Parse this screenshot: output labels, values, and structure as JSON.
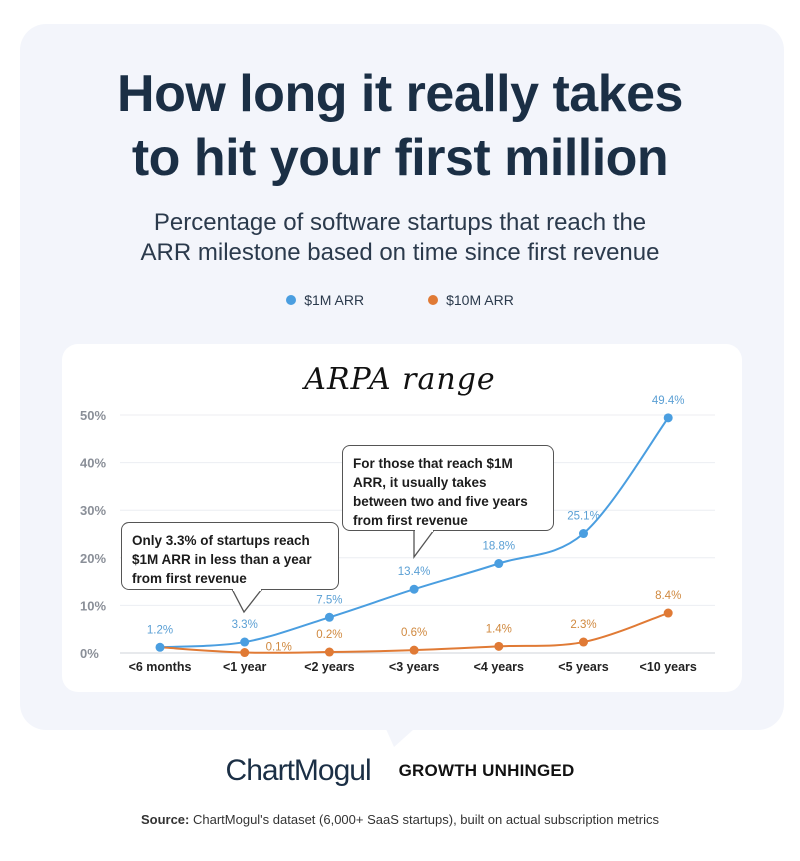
{
  "header": {
    "title_line1": "How long it really takes",
    "title_line2": "to hit your first million",
    "subtitle_line1": "Percentage of software startups that reach the",
    "subtitle_line2": "ARR milestone based on time since first revenue"
  },
  "legend": [
    {
      "label": "$1M ARR",
      "color": "#4a9ee0"
    },
    {
      "label": "$10M ARR",
      "color": "#e07a35"
    }
  ],
  "chart_heading": "ARPA range",
  "callouts": [
    {
      "text": "Only 3.3% of startups reach $1M ARR in less than a year from first revenue"
    },
    {
      "text": "For those that reach $1M ARR, it usually takes between two and five years from first revenue"
    }
  ],
  "footer": {
    "brand1": "ChartMogul",
    "brand2": "GROWTH UNHINGED",
    "source_label": "Source:",
    "source_text": " ChartMogul's dataset (6,000+ SaaS startups), built on actual subscription metrics"
  },
  "chart_data": {
    "type": "line",
    "title": "How long it really takes to hit your first million",
    "subtitle": "Percentage of software startups that reach the ARR milestone based on time since first revenue",
    "xlabel": "",
    "ylabel": "",
    "categories": [
      "<6 months",
      "<1 year",
      "<2 years",
      "<3 years",
      "<4 years",
      "<5 years",
      "<10 years"
    ],
    "series": [
      {
        "name": "$1M ARR",
        "color": "#4a9ee0",
        "values": [
          1.2,
          3.3,
          7.5,
          13.4,
          18.8,
          25.1,
          49.4
        ],
        "labels": [
          "1.2%",
          "3.3%",
          "7.5%",
          "13.4%",
          "18.8%",
          "25.1%",
          "49.4%"
        ]
      },
      {
        "name": "$10M ARR",
        "color": "#e07a35",
        "values": [
          null,
          0.1,
          0.2,
          0.6,
          1.4,
          2.3,
          8.4
        ],
        "labels": [
          "",
          "0.1%",
          "0.2%",
          "0.6%",
          "1.4%",
          "2.3%",
          "8.4%"
        ]
      }
    ],
    "yticks": [
      "0%",
      "10%",
      "20%",
      "30%",
      "40%",
      "50%"
    ],
    "ylim": [
      0,
      50
    ],
    "grid": true,
    "legend_position": "top",
    "annotations": [
      "Only 3.3% of startups reach $1M ARR in less than a year from first revenue",
      "For those that reach $1M ARR, it usually takes between two and five years from first revenue"
    ]
  }
}
